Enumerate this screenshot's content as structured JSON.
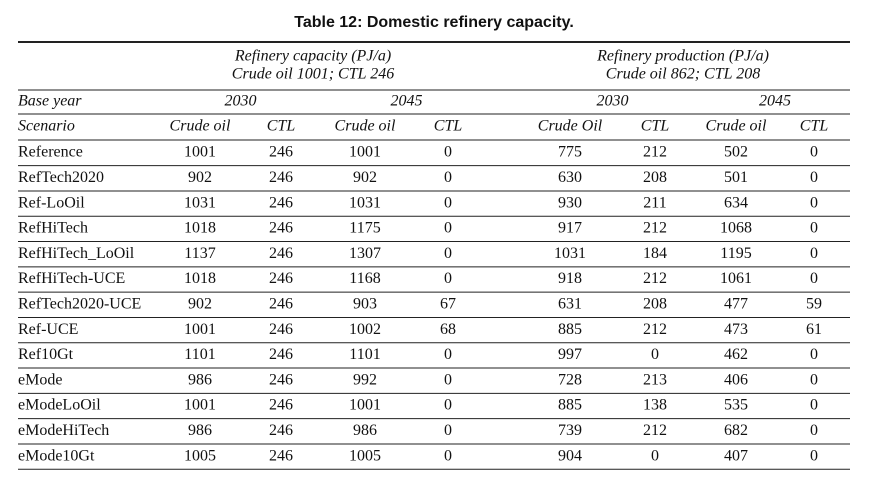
{
  "title": "Table 12: Domestic refinery capacity.",
  "table": {
    "groups": [
      {
        "title": "Refinery capacity (PJ/a)",
        "subtitle": "Crude oil 1001; CTL 246"
      },
      {
        "title": "Refinery production (PJ/a)",
        "subtitle": "Crude oil 862; CTL 208"
      }
    ],
    "base_year_label": "Base year",
    "years": [
      "2030",
      "2045",
      "2030",
      "2045"
    ],
    "scenario_label": "Scenario",
    "columns": [
      "Crude oil",
      "CTL",
      "Crude oil",
      "CTL",
      "Crude Oil",
      "CTL",
      "Crude oil",
      "CTL"
    ],
    "rows": [
      [
        "Reference",
        1001,
        246,
        1001,
        0,
        775,
        212,
        502,
        0
      ],
      [
        "RefTech2020",
        902,
        246,
        902,
        0,
        630,
        208,
        501,
        0
      ],
      [
        "Ref-LoOil",
        1031,
        246,
        1031,
        0,
        930,
        211,
        634,
        0
      ],
      [
        "RefHiTech",
        1018,
        246,
        1175,
        0,
        917,
        212,
        1068,
        0
      ],
      [
        "RefHiTech_LoOil",
        1137,
        246,
        1307,
        0,
        1031,
        184,
        1195,
        0
      ],
      [
        "RefHiTech-UCE",
        1018,
        246,
        1168,
        0,
        918,
        212,
        1061,
        0
      ],
      [
        "RefTech2020-UCE",
        902,
        246,
        903,
        67,
        631,
        208,
        477,
        59
      ],
      [
        "Ref-UCE",
        1001,
        246,
        1002,
        68,
        885,
        212,
        473,
        61
      ],
      [
        "Ref10Gt",
        1101,
        246,
        1101,
        0,
        997,
        0,
        462,
        0
      ],
      [
        "eMode",
        986,
        246,
        992,
        0,
        728,
        213,
        406,
        0
      ],
      [
        "eModeLoOil",
        1001,
        246,
        1001,
        0,
        885,
        138,
        535,
        0
      ],
      [
        "eModeHiTech",
        986,
        246,
        986,
        0,
        739,
        212,
        682,
        0
      ],
      [
        "eMode10Gt",
        1005,
        246,
        1005,
        0,
        904,
        0,
        407,
        0
      ]
    ]
  }
}
